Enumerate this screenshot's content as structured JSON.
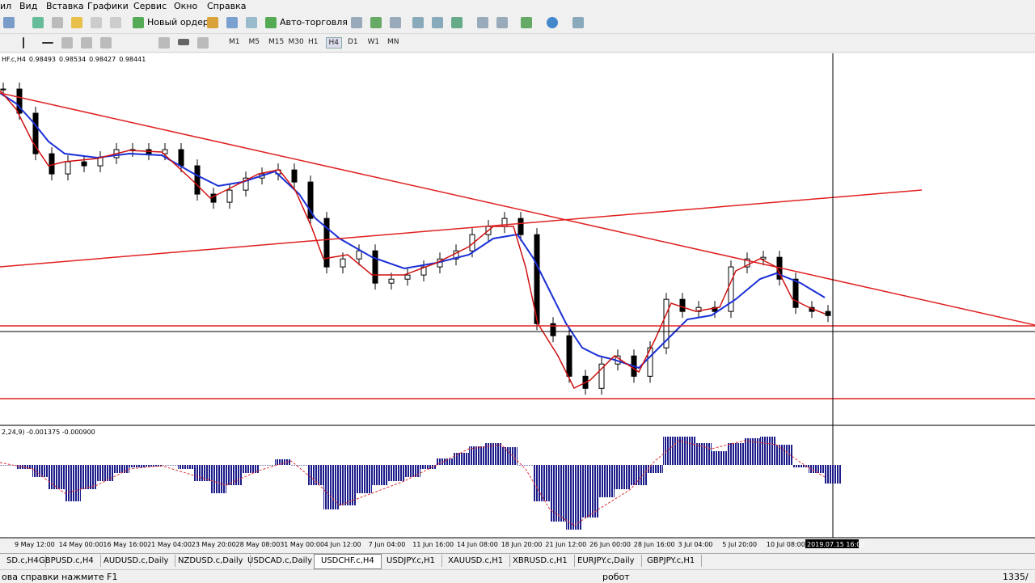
{
  "menu": [
    "ил",
    "Вид",
    "Вставка",
    "Графики",
    "Сервис",
    "Окно",
    "Справка"
  ],
  "toolbar": {
    "new_order": "Новый ордер",
    "auto_trading": "Авто-торговля",
    "timeframes": [
      "M1",
      "M5",
      "M15",
      "M30",
      "H1",
      "H4",
      "D1",
      "W1",
      "MN"
    ]
  },
  "price_chart": {
    "symbol": "HF.c,H4",
    "ohlc": [
      "0.98493",
      "0.98534",
      "0.98427",
      "0.98441"
    ],
    "ylim": [
      0.9736,
      1.0022
    ],
    "close": [
      0.99968,
      0.9978,
      0.99465,
      0.99308,
      0.99402,
      0.99371,
      0.99434,
      0.99497,
      0.99497,
      0.99465,
      0.99497,
      0.99371,
      0.99151,
      0.99088,
      0.99182,
      0.99276,
      0.99308,
      0.99339,
      0.99245,
      0.98962,
      0.98585,
      0.98647,
      0.9871,
      0.98459,
      0.9849,
      0.98522,
      0.98585,
      0.98647,
      0.9871,
      0.98836,
      0.98899,
      0.98962,
      0.98836,
      0.98144,
      0.9805,
      0.97735,
      0.97641,
      0.9783,
      0.97893,
      0.97735,
      0.97956,
      0.98333,
      0.98239,
      0.9827,
      0.98239,
      0.98585,
      0.98647,
      0.9866,
      0.9849,
      0.9827,
      0.98239,
      0.98207
    ]
  },
  "macd": {
    "label": "2,24,9) -0.001375 -0.000900",
    "ylim": [
      -0.0018,
      0.00094
    ],
    "values": [
      0,
      -0.0001,
      -0.0003,
      -0.0006,
      -0.0009,
      -0.0006,
      -0.0004,
      -0.0002,
      -6e-05,
      -4e-05,
      0,
      -0.0001,
      -0.0004,
      -0.0007,
      -0.0005,
      -0.0002,
      0,
      0.00014,
      0,
      -0.0005,
      -0.0011,
      -0.001,
      -0.0007,
      -0.0005,
      -0.0004,
      -0.0003,
      -0.0001,
      0.00016,
      0.0003,
      0.00046,
      0.00054,
      0.00044,
      0,
      -0.0009,
      -0.0014,
      -0.0016,
      -0.0013,
      -0.0008,
      -0.0006,
      -0.0005,
      -0.0002,
      0.0007,
      0.0007,
      0.00054,
      0.00034,
      0.00054,
      0.00066,
      0.0007,
      0.0005,
      -6e-05,
      -0.0002,
      -0.00046
    ]
  },
  "time_axis": {
    "labels": [
      "9 May 12:00",
      "14 May 00:00",
      "16 May 16:00",
      "21 May 04:00",
      "23 May 20:00",
      "28 May 08:00",
      "31 May 00:00",
      "4 Jun 12:00",
      "7 Jun 04:00",
      "11 Jun 16:00",
      "14 Jun 08:00",
      "18 Jun 20:00",
      "21 Jun 12:00",
      "26 Jun 00:00",
      "28 Jun 16:00",
      "3 Jul 04:00",
      "5 Jul 20:00",
      "10 Jul 08:00"
    ],
    "cursor": "2019.07.15 16:00"
  },
  "tabs": [
    "SD.c,H4",
    "GBPUSD.c,H4",
    "AUDUSD.c,Daily",
    "NZDUSD.c,Daily",
    "USDCAD.c,Daily",
    "USDCHF.c,H4",
    "USDJPY.c,H1",
    "XAUUSD.c,H1",
    "XBRUSD.c,H1",
    "EURJPY.c,Daily",
    "GBPJPY.c,H1"
  ],
  "active_tab": 5,
  "status": {
    "help": "ова справки нажмите F1",
    "profile": "робот",
    "traffic": "1335/"
  }
}
